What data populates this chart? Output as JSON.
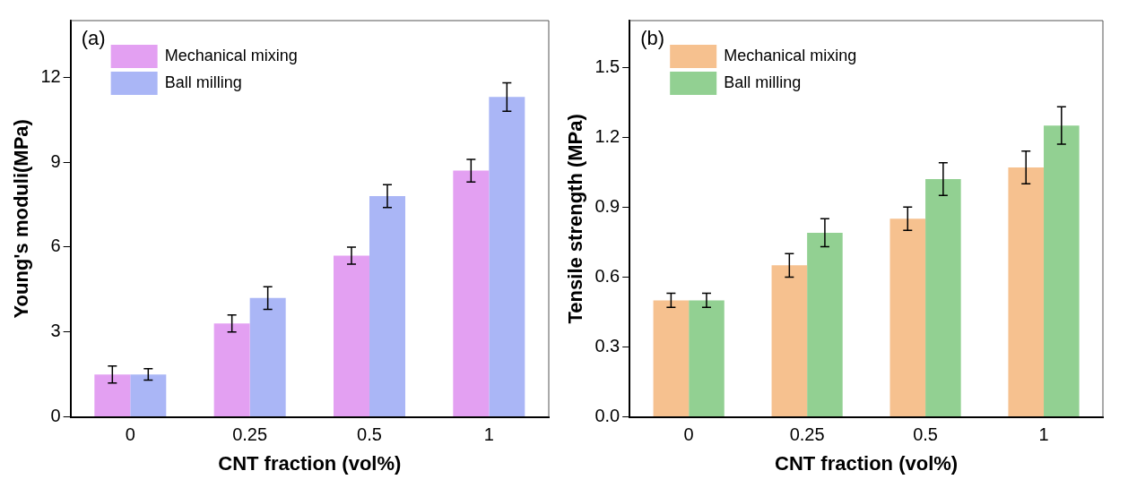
{
  "chart_data": [
    {
      "type": "bar",
      "xlabel": "CNT fraction (vol%)",
      "ylabel": "Young's moduli(MPa)",
      "annotations": [
        "(a)"
      ],
      "categories": [
        "0",
        "0.25",
        "0.5",
        "1"
      ],
      "ylim": [
        0,
        14
      ],
      "yticks": [
        0,
        3,
        6,
        9,
        12
      ],
      "legend": "top left",
      "grid": false,
      "series": [
        {
          "name": "Mechanical mixing",
          "color": "#e3a0f2",
          "values": [
            1.5,
            3.3,
            5.7,
            8.7
          ],
          "errors": [
            0.3,
            0.3,
            0.3,
            0.4
          ]
        },
        {
          "name": "Ball milling",
          "color": "#aab6f6",
          "values": [
            1.5,
            4.2,
            7.8,
            11.3
          ],
          "errors": [
            0.2,
            0.4,
            0.4,
            0.5
          ]
        }
      ]
    },
    {
      "type": "bar",
      "xlabel": "CNT fraction (vol%)",
      "ylabel": "Tensile strength (MPa)",
      "annotations": [
        "(b)"
      ],
      "categories": [
        "0",
        "0.25",
        "0.5",
        "1"
      ],
      "ylim": [
        0,
        1.7
      ],
      "yticks": [
        {
          "value": 0,
          "label": "0.0"
        },
        0.3,
        0.6,
        0.9,
        1.2,
        1.5
      ],
      "legend": "top left",
      "grid": false,
      "series": [
        {
          "name": "Mechanical mixing",
          "color": "#f6c18f",
          "values": [
            0.5,
            0.65,
            0.85,
            1.07
          ],
          "errors": [
            0.03,
            0.05,
            0.05,
            0.07
          ]
        },
        {
          "name": "Ball milling",
          "color": "#92d092",
          "values": [
            0.5,
            0.79,
            1.02,
            1.25
          ],
          "errors": [
            0.03,
            0.06,
            0.07,
            0.08
          ]
        }
      ]
    }
  ]
}
